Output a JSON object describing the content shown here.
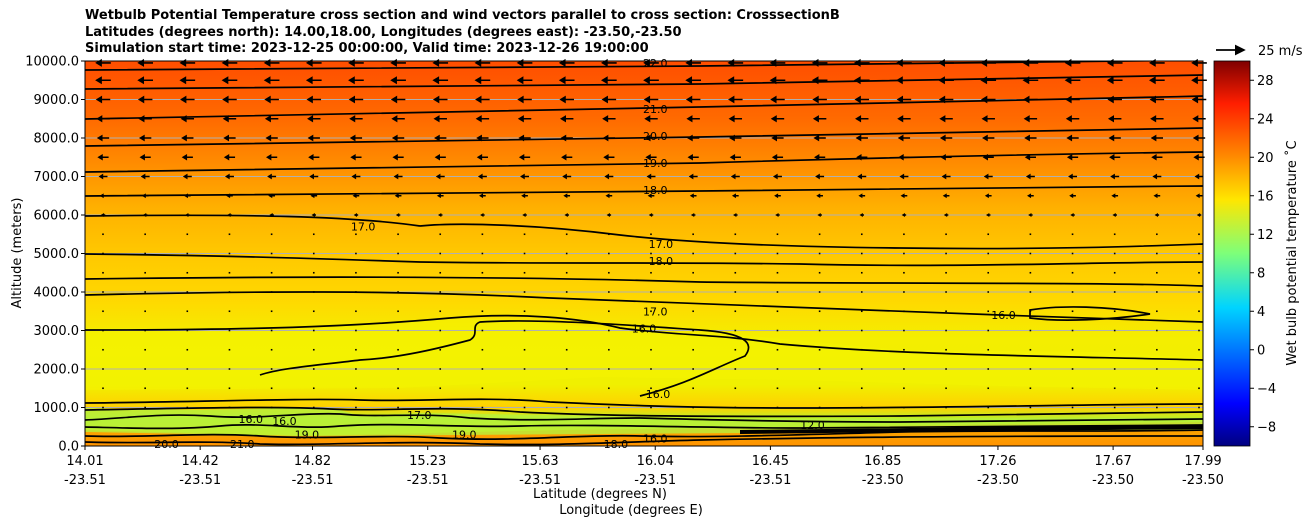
{
  "chart_data": {
    "type": "heatmap",
    "title": [
      "Wetbulb Potential Temperature cross section and wind vectors parallel to cross section: CrosssectionB",
      "Latitudes (degrees north): 14.00,18.00, Longitudes (degrees east): -23.50,-23.50",
      "Simulation start time: 2023-12-25 00:00:00, Valid time: 2023-12-26 19:00:00"
    ],
    "xlabel": "Latitude (degrees N)",
    "xlabel2": "Longitude (degrees E)",
    "ylabel": "Altitude (meters)",
    "ylim": [
      0,
      10000
    ],
    "y_ticks": [
      "0.0",
      "1000.0",
      "2000.0",
      "3000.0",
      "4000.0",
      "5000.0",
      "6000.0",
      "7000.0",
      "8000.0",
      "9000.0",
      "10000.0"
    ],
    "x_ticks": [
      {
        "lat": "14.01",
        "lon": "-23.51"
      },
      {
        "lat": "14.42",
        "lon": "-23.51"
      },
      {
        "lat": "14.82",
        "lon": "-23.51"
      },
      {
        "lat": "15.23",
        "lon": "-23.51"
      },
      {
        "lat": "15.63",
        "lon": "-23.51"
      },
      {
        "lat": "16.04",
        "lon": "-23.51"
      },
      {
        "lat": "16.45",
        "lon": "-23.51"
      },
      {
        "lat": "16.85",
        "lon": "-23.50"
      },
      {
        "lat": "17.26",
        "lon": "-23.50"
      },
      {
        "lat": "17.67",
        "lon": "-23.50"
      },
      {
        "lat": "17.99",
        "lon": "-23.50"
      }
    ],
    "grid": "horizontal",
    "colorbar": {
      "label": "Wet bulb potential temperature ˚C",
      "ticks": [
        "−8",
        "−4",
        "0",
        "4",
        "8",
        "12",
        "16",
        "20",
        "24",
        "28"
      ],
      "range": [
        -10,
        30
      ],
      "colormap": "jet"
    },
    "quiver_key": {
      "label": "25 m/s",
      "value": 25
    },
    "contour_labels": [
      {
        "text": "22.0",
        "x": 16.04,
        "y": 9950
      },
      {
        "text": "21.0",
        "x": 16.04,
        "y": 8750
      },
      {
        "text": "20.0",
        "x": 16.04,
        "y": 8050
      },
      {
        "text": "19.0",
        "x": 16.04,
        "y": 7350
      },
      {
        "text": "18.0",
        "x": 16.04,
        "y": 6650
      },
      {
        "text": "17.0",
        "x": 15.0,
        "y": 5700
      },
      {
        "text": "17.0",
        "x": 16.06,
        "y": 5250
      },
      {
        "text": "18.0",
        "x": 16.06,
        "y": 4800
      },
      {
        "text": "17.0",
        "x": 16.04,
        "y": 3500
      },
      {
        "text": "16.0",
        "x": 16.0,
        "y": 3050
      },
      {
        "text": "16.0",
        "x": 16.05,
        "y": 1350
      },
      {
        "text": "16.0",
        "x": 17.28,
        "y": 3400
      },
      {
        "text": "16.0",
        "x": 14.6,
        "y": 700
      },
      {
        "text": "16.0",
        "x": 14.72,
        "y": 650
      },
      {
        "text": "17.0",
        "x": 15.2,
        "y": 800
      },
      {
        "text": "12.0",
        "x": 16.6,
        "y": 550
      },
      {
        "text": "19.0",
        "x": 14.8,
        "y": 300
      },
      {
        "text": "21.0",
        "x": 14.57,
        "y": 50
      },
      {
        "text": "20.0",
        "x": 14.3,
        "y": 50
      },
      {
        "text": "18.0",
        "x": 15.9,
        "y": 50
      },
      {
        "text": "16.0",
        "x": 16.04,
        "y": 200
      },
      {
        "text": "19.0",
        "x": 15.36,
        "y": 300
      }
    ],
    "isotherm_levels": [
      22,
      21,
      20,
      19,
      18,
      17,
      16,
      15,
      14,
      13,
      12
    ],
    "wind": {
      "description": "easterly winds parallel to cross section (arrows pointing toward lower latitude), strong above 7000 m, weak below 5000 m",
      "levels_m": [
        9950,
        9500,
        9000,
        8500,
        8000,
        7500,
        7000,
        6500,
        6000,
        5500,
        5000,
        4500,
        4000,
        3500,
        3000,
        2500,
        2000,
        1500,
        1000
      ],
      "speeds_ms": [
        14,
        14,
        13,
        12,
        11,
        10,
        8,
        6,
        4,
        2,
        1.5,
        1,
        1,
        0.5,
        0.5,
        0.5,
        0.5,
        0.5,
        0.5
      ]
    }
  }
}
